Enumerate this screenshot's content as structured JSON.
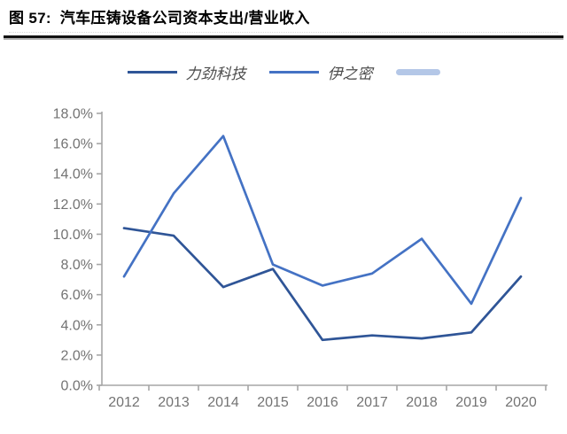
{
  "header": {
    "figure_label": "图 57:",
    "title": "汽车压铸设备公司资本支出/营业收入"
  },
  "legend": {
    "items": [
      {
        "label": "力劲科技",
        "color": "#2F5597",
        "type": "line"
      },
      {
        "label": "伊之密",
        "color": "#4472C4",
        "type": "line"
      },
      {
        "label": "",
        "color": "#B4C7E7",
        "type": "thick-line"
      }
    ]
  },
  "chart_data": {
    "type": "line",
    "title": "汽车压铸设备公司资本支出/营业收入",
    "categories": [
      "2012",
      "2013",
      "2014",
      "2015",
      "2016",
      "2017",
      "2018",
      "2019",
      "2020"
    ],
    "series": [
      {
        "name": "力劲科技",
        "color": "#2F5597",
        "values": [
          10.4,
          9.9,
          6.5,
          7.7,
          3.0,
          3.3,
          3.1,
          3.5,
          7.2
        ]
      },
      {
        "name": "伊之密",
        "color": "#4472C4",
        "values": [
          7.2,
          12.7,
          16.5,
          8.0,
          6.6,
          7.4,
          9.7,
          5.4,
          12.4
        ]
      }
    ],
    "xlabel": "",
    "ylabel": "",
    "ylim": [
      0,
      18
    ],
    "ytick_step": 2,
    "ytick_labels": [
      "0.0%",
      "2.0%",
      "4.0%",
      "6.0%",
      "8.0%",
      "10.0%",
      "12.0%",
      "14.0%",
      "16.0%",
      "18.0%"
    ],
    "grid": false,
    "legend_position": "top",
    "axis_color": "#a6a6a6",
    "tick_label_color": "#737373"
  }
}
